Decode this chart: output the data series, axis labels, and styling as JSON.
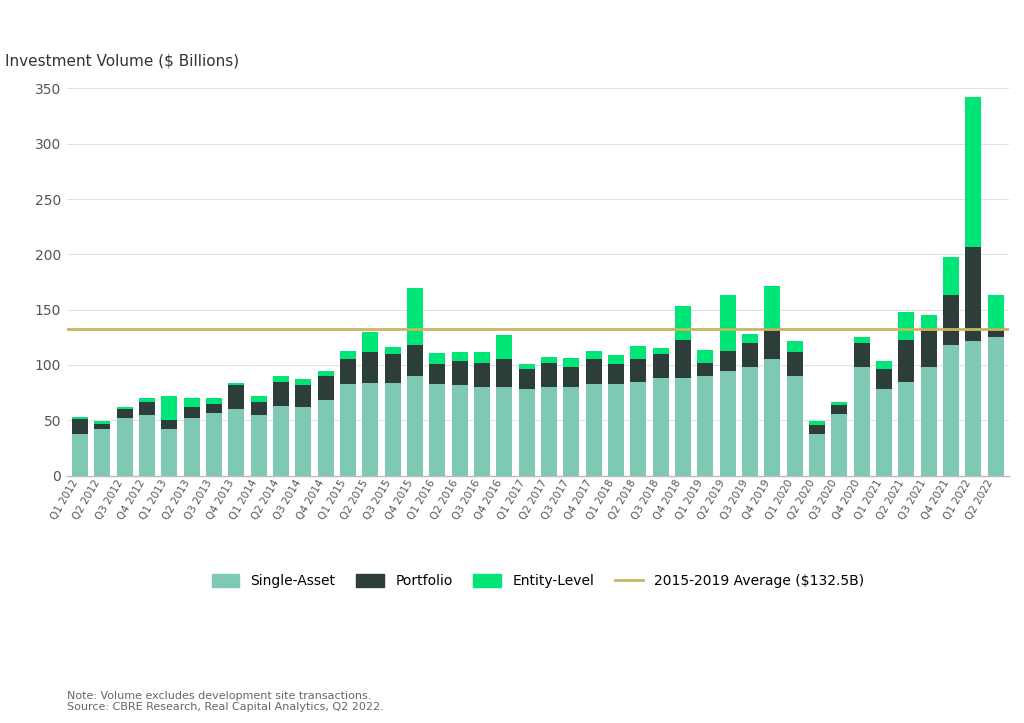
{
  "ylabel": "Investment Volume ($ Billions)",
  "avg_line": 132.5,
  "avg_label": "2015-2019 Average ($132.5B)",
  "avg_color": "#c8b560",
  "color_single": "#7ec8b4",
  "color_portfolio": "#2d3d3a",
  "color_entity": "#00e676",
  "background": "#ffffff",
  "grid_color": "#e0e0e0",
  "note": "Note: Volume excludes development site transactions.\nSource: CBRE Research, Real Capital Analytics, Q2 2022.",
  "quarters": [
    "Q1 2012",
    "Q2 2012",
    "Q3 2012",
    "Q4 2012",
    "Q1 2013",
    "Q2 2013",
    "Q3 2013",
    "Q4 2013",
    "Q1 2014",
    "Q2 2014",
    "Q3 2014",
    "Q4 2014",
    "Q1 2015",
    "Q2 2015",
    "Q3 2015",
    "Q4 2015",
    "Q1 2016",
    "Q2 2016",
    "Q3 2016",
    "Q4 2016",
    "Q1 2017",
    "Q2 2017",
    "Q3 2017",
    "Q4 2017",
    "Q1 2018",
    "Q2 2018",
    "Q3 2018",
    "Q4 2018",
    "Q1 2019",
    "Q2 2019",
    "Q3 2019",
    "Q4 2019",
    "Q1 2020",
    "Q2 2020",
    "Q3 2020",
    "Q4 2020",
    "Q1 2021",
    "Q2 2021",
    "Q3 2021",
    "Q4 2021",
    "Q1 2022",
    "Q2 2022"
  ],
  "single_asset": [
    38,
    42,
    52,
    55,
    42,
    52,
    57,
    60,
    55,
    63,
    62,
    68,
    83,
    84,
    84,
    90,
    83,
    82,
    80,
    80,
    78,
    80,
    80,
    83,
    83,
    85,
    88,
    88,
    90,
    95,
    98,
    105,
    90,
    38,
    56,
    98,
    78,
    85,
    98,
    118,
    122,
    125
  ],
  "portfolio": [
    13,
    5,
    8,
    12,
    8,
    10,
    8,
    22,
    12,
    22,
    20,
    22,
    22,
    28,
    26,
    28,
    18,
    22,
    22,
    25,
    18,
    22,
    18,
    22,
    18,
    20,
    22,
    35,
    12,
    18,
    22,
    28,
    22,
    8,
    8,
    22,
    18,
    38,
    35,
    45,
    85,
    8
  ],
  "entity_level": [
    2,
    2,
    2,
    3,
    22,
    8,
    5,
    2,
    5,
    5,
    5,
    5,
    8,
    18,
    6,
    52,
    10,
    8,
    10,
    22,
    5,
    5,
    8,
    8,
    8,
    12,
    5,
    30,
    12,
    50,
    8,
    38,
    10,
    3,
    3,
    5,
    8,
    25,
    12,
    35,
    135,
    30
  ]
}
